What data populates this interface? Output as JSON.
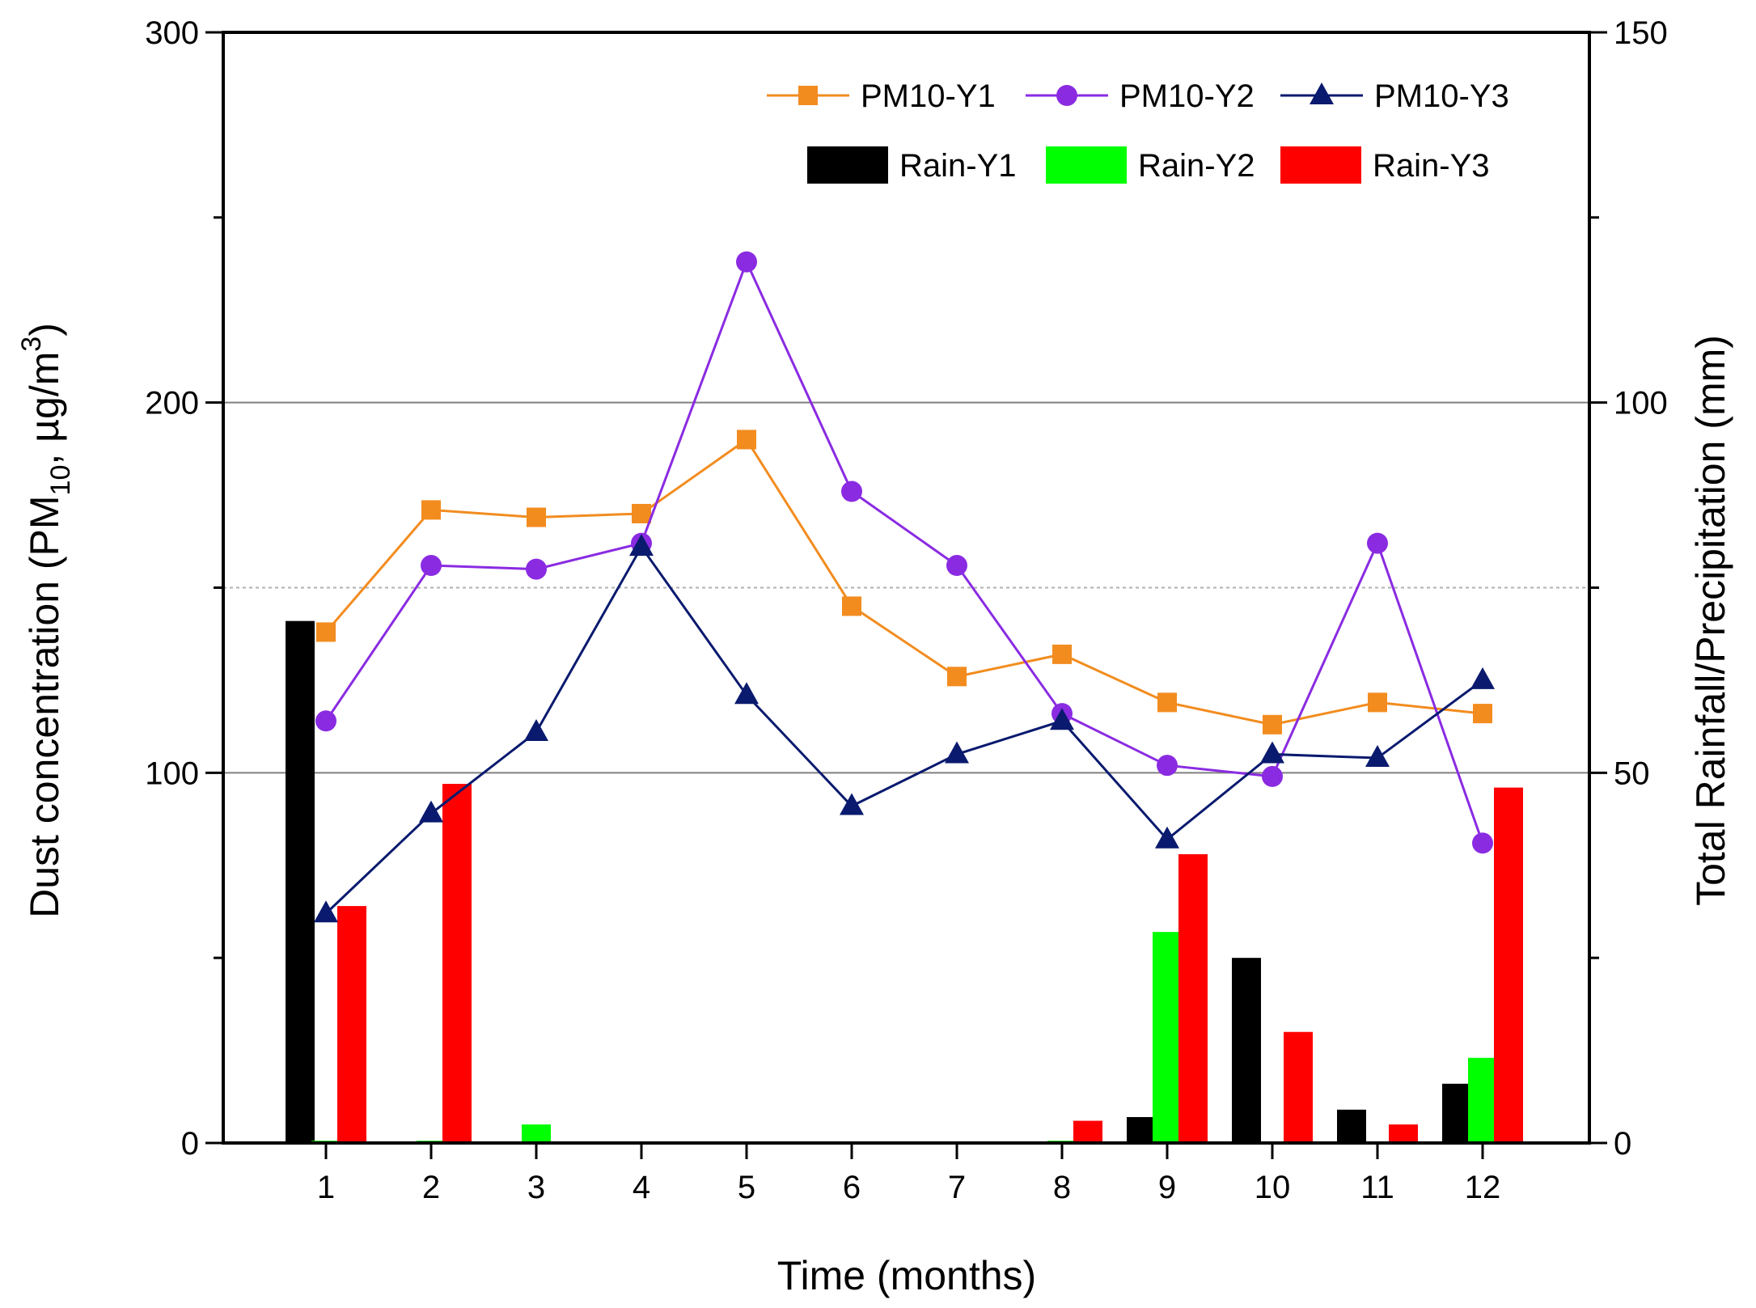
{
  "chart_data": {
    "type": "bar+line",
    "title": "",
    "x": [
      1,
      2,
      3,
      4,
      5,
      6,
      7,
      8,
      9,
      10,
      11,
      12
    ],
    "xlabel": "Time (months)",
    "ylabel_left": {
      "prefix": "Dust concentration (PM",
      "sub": "10",
      "middle": ", µg/m",
      "sup": "3",
      "suffix": ")"
    },
    "ylabel_right": "Total Rainfall/Precipitation (mm)",
    "ylim_left": [
      0,
      300
    ],
    "ylim_right": [
      0,
      150
    ],
    "yticks_left": [
      "0",
      "100",
      "200",
      "300"
    ],
    "yticks_right": [
      "0",
      "50",
      "100",
      "150"
    ],
    "gridlines_left": [
      100,
      200
    ],
    "dashed_gridline_left": 150,
    "line_series": [
      {
        "name": "PM10-Y1",
        "marker": "square",
        "color": "#F28C1F",
        "values": [
          138,
          171,
          169,
          170,
          190,
          145,
          126,
          132,
          119,
          113,
          119,
          116
        ]
      },
      {
        "name": "PM10-Y2",
        "marker": "circle",
        "color": "#8A2BE2",
        "values": [
          114,
          156,
          155,
          162,
          238,
          176,
          156,
          116,
          102,
          99,
          162,
          81
        ]
      },
      {
        "name": "PM10-Y3",
        "marker": "triangle",
        "color": "#0A1A6E",
        "values": [
          62,
          89,
          111,
          161,
          121,
          91,
          105,
          114,
          82,
          105,
          104,
          125
        ]
      }
    ],
    "bar_series": [
      {
        "name": "Rain-Y1",
        "color": "#000000",
        "values": [
          70.5,
          0,
          0,
          0,
          0,
          0,
          0,
          0,
          3.5,
          25,
          4.5,
          8
        ]
      },
      {
        "name": "Rain-Y2",
        "color": "#00FF00",
        "values": [
          0.3,
          0.3,
          2.5,
          0,
          0,
          0,
          0,
          0.3,
          28.5,
          0,
          0,
          11.5
        ]
      },
      {
        "name": "Rain-Y3",
        "color": "#FF0000",
        "values": [
          32,
          48.5,
          0.2,
          0,
          0,
          0,
          0,
          3,
          39,
          15,
          2.5,
          48
        ]
      }
    ],
    "legend_position": "top-right"
  }
}
